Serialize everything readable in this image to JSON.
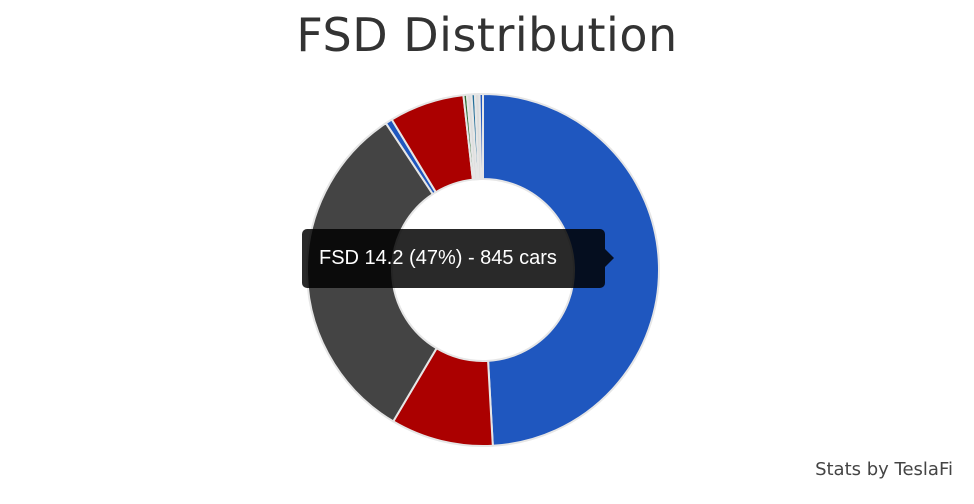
{
  "chart_data": {
    "type": "pie",
    "title": "FSD Distribution",
    "variant": "doughnut",
    "slices": [
      {
        "label": "FSD 14.2",
        "percent": 47,
        "color": "#1f57bf"
      },
      {
        "label": "",
        "percent": 9.0,
        "color": "#ab0000"
      },
      {
        "label": "",
        "percent": 30.8,
        "color": "#444444"
      },
      {
        "label": "",
        "percent": 0.6,
        "color": "#1f57bf"
      },
      {
        "label": "",
        "percent": 6.6,
        "color": "#ab0000"
      },
      {
        "label": "",
        "percent": 0.3,
        "color": "#2e6e33"
      },
      {
        "label": "",
        "percent": 0.4,
        "color": "#dddddd"
      },
      {
        "label": "",
        "percent": 0.3,
        "color": "#236e99"
      },
      {
        "label": "",
        "percent": 0.4,
        "color": "#dddddd"
      },
      {
        "label": "",
        "percent": 0.3,
        "color": "#1f57bf"
      }
    ]
  },
  "tooltip": {
    "text": "FSD 14.2 (47%) - 845 cars"
  },
  "credit": "Stats by TeslaFi",
  "colors": {
    "title": "#333333",
    "background": "#ffffff",
    "slice_border": "#e6e6e6"
  }
}
